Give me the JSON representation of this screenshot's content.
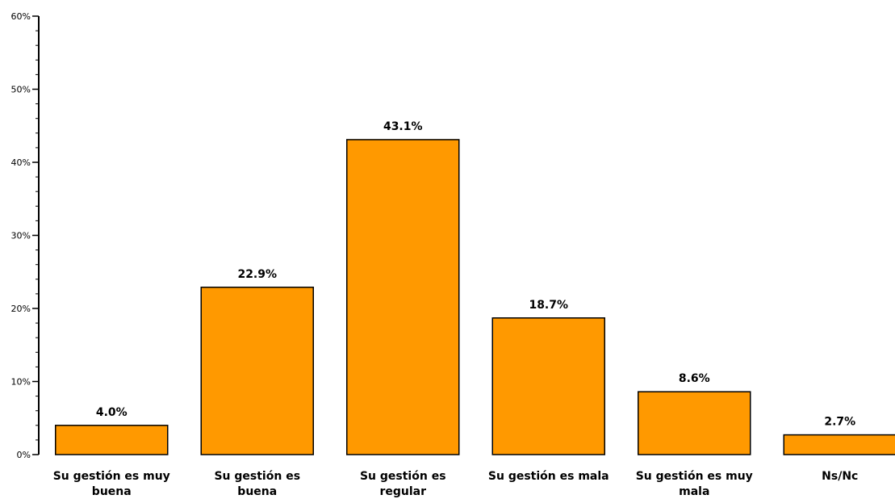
{
  "chart_data": {
    "type": "bar",
    "categories": [
      [
        "Su gestión es muy",
        "buena"
      ],
      [
        "Su gestión es",
        "buena"
      ],
      [
        "Su gestión es",
        "regular"
      ],
      [
        "Su gestión es mala"
      ],
      [
        "Su gestión es muy",
        "mala"
      ],
      [
        "Ns/Nc"
      ]
    ],
    "values": [
      4.0,
      22.9,
      43.1,
      18.7,
      8.6,
      2.7
    ],
    "value_labels": [
      "4.0%",
      "22.9%",
      "43.1%",
      "18.7%",
      "8.6%",
      "2.7%"
    ],
    "y_ticks": [
      0,
      10,
      20,
      30,
      40,
      50,
      60
    ],
    "y_tick_labels": [
      "0%",
      "10%",
      "20%",
      "30%",
      "40%",
      "50%",
      "60%"
    ],
    "ylim": [
      0,
      60
    ],
    "grid": false,
    "legend": "none",
    "bar_color": "#FF9900",
    "bar_edge_color": "#000000"
  }
}
